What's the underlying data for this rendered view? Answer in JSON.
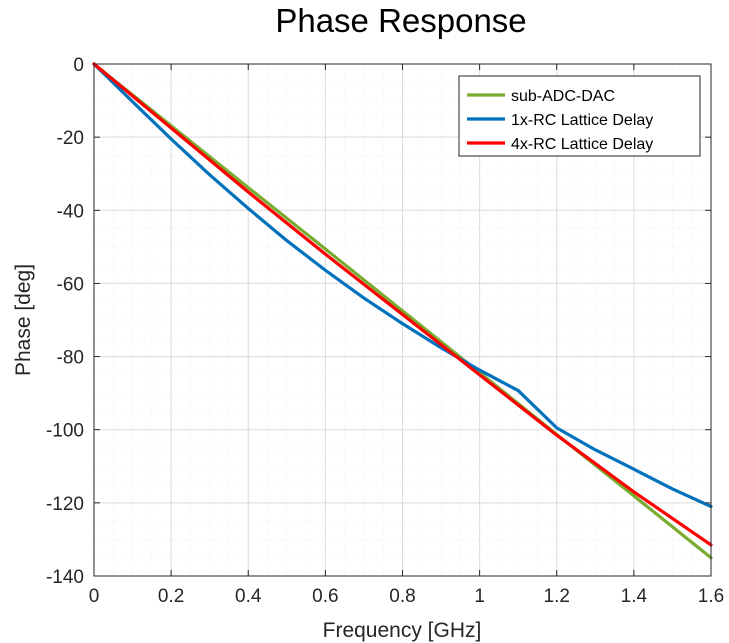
{
  "chart_data": {
    "type": "line",
    "title": "Phase Response",
    "xlabel": "Frequency [GHz]",
    "ylabel": "Phase [deg]",
    "xlim": [
      0,
      1.6
    ],
    "ylim": [
      -140,
      0
    ],
    "xticks": [
      0,
      0.2,
      0.4,
      0.6,
      0.8,
      1,
      1.2,
      1.4,
      1.6
    ],
    "xtick_labels": [
      "0",
      "0.2",
      "0.4",
      "0.6",
      "0.8",
      "1",
      "1.2",
      "1.4",
      "1.6"
    ],
    "yticks": [
      0,
      -20,
      -40,
      -60,
      -80,
      -100,
      -120,
      -140
    ],
    "ytick_labels": [
      "0",
      "-20",
      "-40",
      "-60",
      "-80",
      "-100",
      "-120",
      "-140"
    ],
    "grid": true,
    "minor_grid": true,
    "legend_position": "top-right",
    "series": [
      {
        "name": "sub-ADC-DAC",
        "color": "#77ac30",
        "x": [
          0,
          0.2,
          0.4,
          0.6,
          0.8,
          1.0,
          1.2,
          1.4,
          1.6
        ],
        "y": [
          0,
          -16.9,
          -33.8,
          -50.6,
          -67.5,
          -84.4,
          -101.3,
          -118.1,
          -135.0
        ]
      },
      {
        "name": "1x-RC Lattice Delay",
        "color": "#0072bd",
        "x": [
          0,
          0.1,
          0.2,
          0.3,
          0.4,
          0.5,
          0.6,
          0.7,
          0.8,
          0.9,
          1.0,
          1.1,
          1.2,
          1.3,
          1.4,
          1.5,
          1.6
        ],
        "y": [
          0,
          -10.3,
          -20.5,
          -30.3,
          -39.5,
          -48.3,
          -56.4,
          -64.0,
          -71.0,
          -77.6,
          -83.7,
          -89.3,
          -99.5,
          -105.5,
          -110.8,
          -116.2,
          -121.0
        ]
      },
      {
        "name": "4x-RC Lattice Delay",
        "color": "#ff0000",
        "x": [
          0,
          0.2,
          0.4,
          0.6,
          0.8,
          1.0,
          1.2,
          1.4,
          1.6
        ],
        "y": [
          0,
          -17.5,
          -35.0,
          -52.0,
          -68.5,
          -85.0,
          -101.5,
          -117.0,
          -131.5
        ]
      }
    ]
  }
}
